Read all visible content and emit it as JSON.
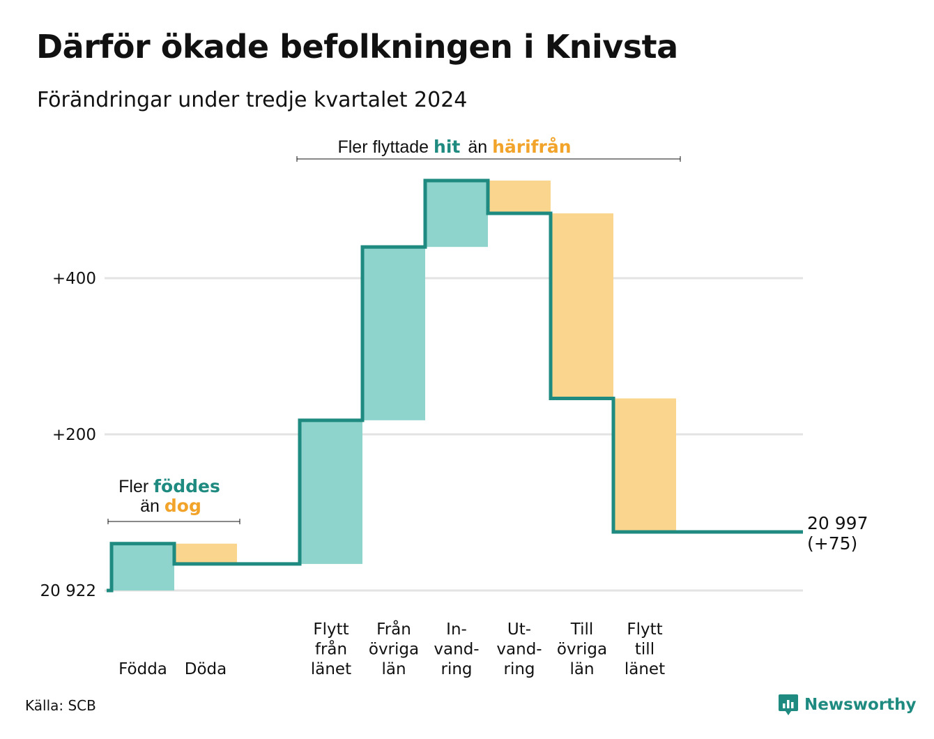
{
  "title": "Därför ökade befolkningen i Knivsta",
  "subtitle": "Förändringar under tredje kvartalet 2024",
  "source": "Källa: SCB",
  "brand": {
    "name": "Newsworthy",
    "icon": "chart-logo-icon"
  },
  "colors": {
    "increase": "#8fd4cc",
    "decrease": "#f9d58d",
    "line": "#1e8a80",
    "grid": "#e3e3e3",
    "teal_text": "#1e8a80",
    "orange_text": "#f2a32a"
  },
  "annotations": {
    "migration": {
      "before": "Fler flyttade",
      "hit": "hit",
      "middle": "än",
      "harifran": "härifrån"
    },
    "births": {
      "line1_before": "Fler",
      "fodde": "föddes",
      "line2_before": "än",
      "dog": "dog"
    }
  },
  "chart_data": {
    "type": "waterfall",
    "base": 20922,
    "ylim": [
      0,
      530
    ],
    "y_ticks": [
      {
        "value": 0,
        "label": "20 922"
      },
      {
        "value": 200,
        "label": "+200"
      },
      {
        "value": 400,
        "label": "+400"
      }
    ],
    "steps": [
      {
        "label": [
          "Födda"
        ],
        "change": 60,
        "kind": "increase"
      },
      {
        "label": [
          "Döda"
        ],
        "change": -26,
        "kind": "decrease"
      },
      {
        "label": [],
        "change": 0,
        "kind": "gap"
      },
      {
        "label": [
          "Flytt",
          "från",
          "länet"
        ],
        "change": 184,
        "kind": "increase"
      },
      {
        "label": [
          "Från",
          "övriga",
          "län"
        ],
        "change": 222,
        "kind": "increase"
      },
      {
        "label": [
          "In-",
          "vand-",
          "ring"
        ],
        "change": 85,
        "kind": "increase"
      },
      {
        "label": [
          "Ut-",
          "vand-",
          "ring"
        ],
        "change": -42,
        "kind": "decrease"
      },
      {
        "label": [
          "Till",
          "övriga",
          "län"
        ],
        "change": -237,
        "kind": "decrease"
      },
      {
        "label": [
          "Flytt",
          "till",
          "länet"
        ],
        "change": -171,
        "kind": "decrease"
      }
    ],
    "end": {
      "total": "20 997",
      "change": "(+75)",
      "value": 75
    }
  }
}
